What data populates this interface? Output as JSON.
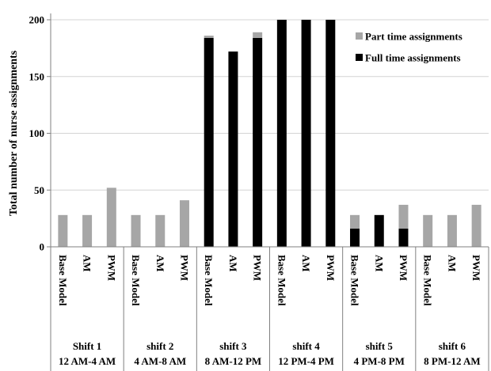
{
  "chart_data": {
    "type": "bar",
    "stacked": true,
    "title": "",
    "xlabel": "",
    "ylabel": "Total number of nurse assignments",
    "ylim": [
      0,
      200
    ],
    "yticks": [
      "0",
      "50",
      "100",
      "150",
      "200"
    ],
    "grid": true,
    "legend_position": "top-right",
    "groups": [
      {
        "name": "Shift 1",
        "time": "12 AM-4 AM",
        "categories": [
          "Base Model",
          "AM",
          "PWM"
        ]
      },
      {
        "name": "shift 2",
        "time": "4 AM-8 AM",
        "categories": [
          "Base Model",
          "AM",
          "PWM"
        ]
      },
      {
        "name": "shift 3",
        "time": "8 AM-12 PM",
        "categories": [
          "Base Model",
          "AM",
          "PWM"
        ]
      },
      {
        "name": "shift 4",
        "time": "12 PM-4 PM",
        "categories": [
          "Base Model",
          "AM",
          "PWM"
        ]
      },
      {
        "name": "shift 5",
        "time": "4 PM-8 PM",
        "categories": [
          "Base Model",
          "AM",
          "PWM"
        ]
      },
      {
        "name": "shift 6",
        "time": "8 PM-12 AM",
        "categories": [
          "Base Model",
          "AM",
          "PWM"
        ]
      }
    ],
    "series": [
      {
        "name": "Full time assignments",
        "color": "#000000",
        "values": [
          0,
          0,
          0,
          0,
          0,
          0,
          184,
          172,
          184,
          200,
          200,
          200,
          16,
          28,
          16,
          0,
          0,
          0
        ]
      },
      {
        "name": "Part time assignments",
        "color": "#a6a6a6",
        "values": [
          28,
          28,
          52,
          28,
          28,
          41,
          2,
          0,
          5,
          0,
          0,
          0,
          12,
          0,
          21,
          28,
          28,
          37
        ]
      }
    ]
  }
}
